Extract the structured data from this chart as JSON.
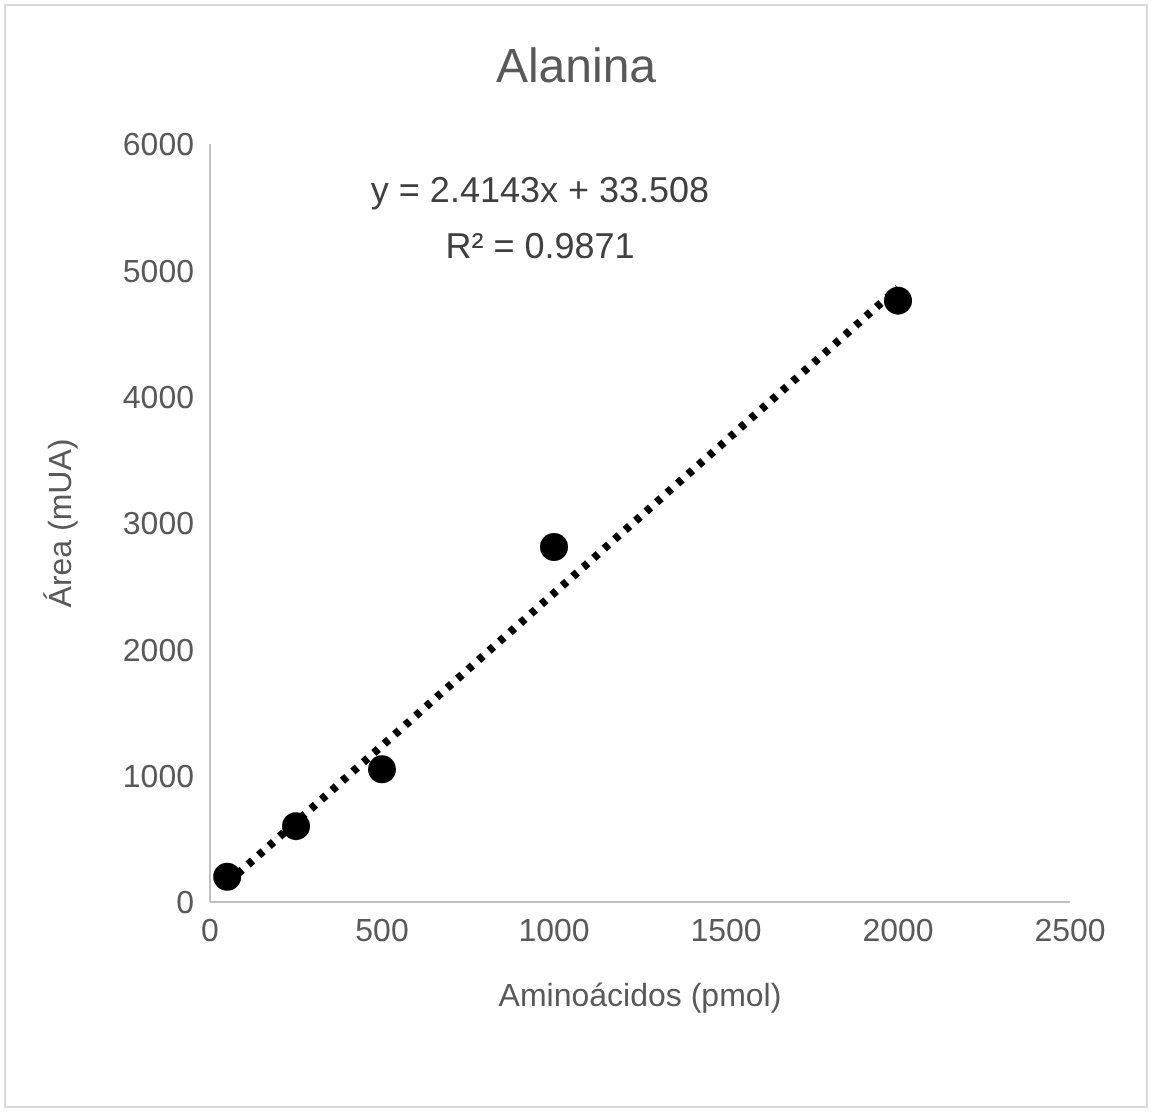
{
  "chart_data": {
    "type": "scatter",
    "title": "Alanina",
    "xlabel": "Aminoácidos (pmol)",
    "ylabel": "Área (mUA)",
    "xlim": [
      0,
      2500
    ],
    "xticks": [
      0,
      500,
      1000,
      1500,
      2000,
      2500
    ],
    "ylim": [
      0,
      6000
    ],
    "yticks": [
      0,
      1000,
      2000,
      3000,
      4000,
      5000,
      6000
    ],
    "grid": false,
    "legend": false,
    "series": [
      {
        "color": "#000000",
        "marker": "circle",
        "x": [
          50,
          250,
          500,
          1000,
          2000
        ],
        "values": [
          200,
          600,
          1050,
          2810,
          4760
        ]
      },
      {
        "type": "line",
        "color": "#000000",
        "marker": "none",
        "line_style": "dotted",
        "x": [
          50,
          2000
        ],
        "values": [
          150,
          4860
        ]
      }
    ],
    "annotations": [
      "y = 2.4143x + 33.508",
      "R² = 0.9871"
    ]
  }
}
